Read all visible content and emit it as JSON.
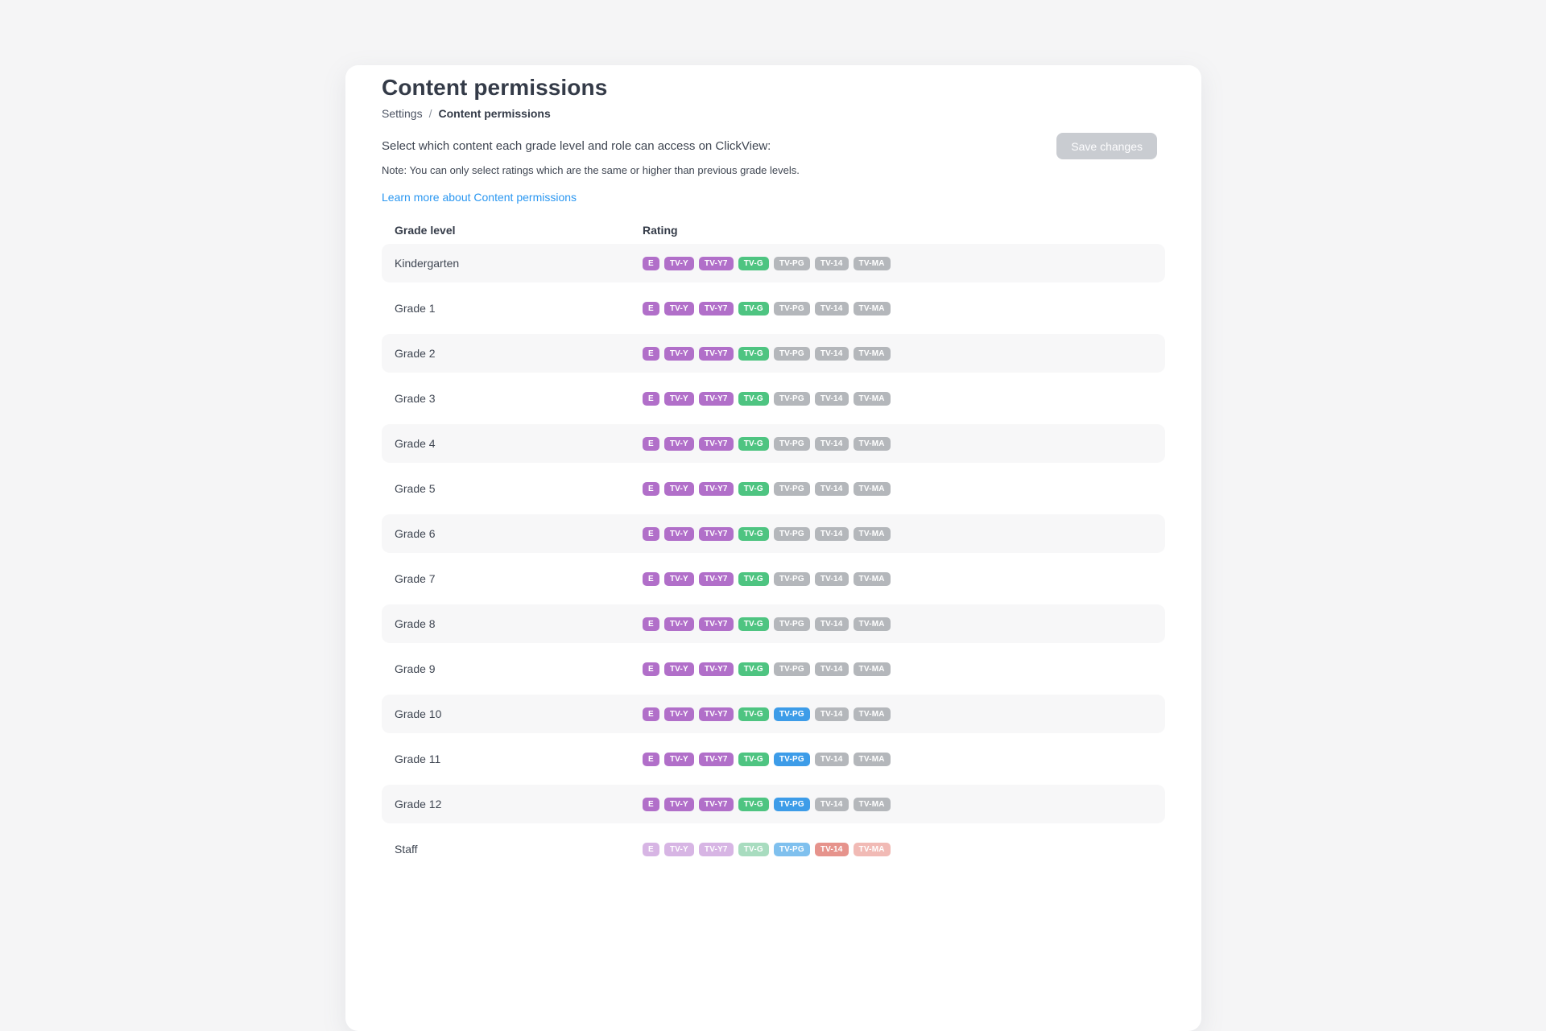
{
  "header": {
    "title": "Content permissions",
    "breadcrumb": {
      "parent": "Settings",
      "separator": "/",
      "current": "Content permissions"
    },
    "description": "Select which content each grade level and role can access on ClickView:",
    "note": "Note: You can only select ratings which are the same or higher than previous grade levels.",
    "link": "Learn more about Content permissions",
    "save_button": "Save changes"
  },
  "colors": {
    "page_background": "#f5f5f6",
    "card_background": "#ffffff",
    "link_blue": "#2a97f1",
    "disabled_button": "#c9ccd1",
    "alt_row": "#f7f7f8"
  },
  "table": {
    "columns": [
      "Grade level",
      "Rating"
    ],
    "badge_colors": {
      "purple": "#b16fc9",
      "green": "#4ec481",
      "gray": "#b4b7bb",
      "blue": "#3d9ce8",
      "purpleMuted": "#d7b5e4",
      "greenMuted": "#a8dcbf",
      "blueMuted": "#7fc0ee",
      "redMuted": "#e6938c",
      "pinkMuted": "#f1bab5"
    },
    "rows": [
      {
        "label": "Kindergarten",
        "badges": [
          {
            "text": "E",
            "color": "purple"
          },
          {
            "text": "TV-Y",
            "color": "purple"
          },
          {
            "text": "TV-Y7",
            "color": "purple"
          },
          {
            "text": "TV-G",
            "color": "green"
          },
          {
            "text": "TV-PG",
            "color": "gray"
          },
          {
            "text": "TV-14",
            "color": "gray"
          },
          {
            "text": "TV-MA",
            "color": "gray"
          }
        ]
      },
      {
        "label": "Grade 1",
        "badges": [
          {
            "text": "E",
            "color": "purple"
          },
          {
            "text": "TV-Y",
            "color": "purple"
          },
          {
            "text": "TV-Y7",
            "color": "purple"
          },
          {
            "text": "TV-G",
            "color": "green"
          },
          {
            "text": "TV-PG",
            "color": "gray"
          },
          {
            "text": "TV-14",
            "color": "gray"
          },
          {
            "text": "TV-MA",
            "color": "gray"
          }
        ]
      },
      {
        "label": "Grade 2",
        "badges": [
          {
            "text": "E",
            "color": "purple"
          },
          {
            "text": "TV-Y",
            "color": "purple"
          },
          {
            "text": "TV-Y7",
            "color": "purple"
          },
          {
            "text": "TV-G",
            "color": "green"
          },
          {
            "text": "TV-PG",
            "color": "gray"
          },
          {
            "text": "TV-14",
            "color": "gray"
          },
          {
            "text": "TV-MA",
            "color": "gray"
          }
        ]
      },
      {
        "label": "Grade 3",
        "badges": [
          {
            "text": "E",
            "color": "purple"
          },
          {
            "text": "TV-Y",
            "color": "purple"
          },
          {
            "text": "TV-Y7",
            "color": "purple"
          },
          {
            "text": "TV-G",
            "color": "green"
          },
          {
            "text": "TV-PG",
            "color": "gray"
          },
          {
            "text": "TV-14",
            "color": "gray"
          },
          {
            "text": "TV-MA",
            "color": "gray"
          }
        ]
      },
      {
        "label": "Grade 4",
        "badges": [
          {
            "text": "E",
            "color": "purple"
          },
          {
            "text": "TV-Y",
            "color": "purple"
          },
          {
            "text": "TV-Y7",
            "color": "purple"
          },
          {
            "text": "TV-G",
            "color": "green"
          },
          {
            "text": "TV-PG",
            "color": "gray"
          },
          {
            "text": "TV-14",
            "color": "gray"
          },
          {
            "text": "TV-MA",
            "color": "gray"
          }
        ]
      },
      {
        "label": "Grade 5",
        "badges": [
          {
            "text": "E",
            "color": "purple"
          },
          {
            "text": "TV-Y",
            "color": "purple"
          },
          {
            "text": "TV-Y7",
            "color": "purple"
          },
          {
            "text": "TV-G",
            "color": "green"
          },
          {
            "text": "TV-PG",
            "color": "gray"
          },
          {
            "text": "TV-14",
            "color": "gray"
          },
          {
            "text": "TV-MA",
            "color": "gray"
          }
        ]
      },
      {
        "label": "Grade 6",
        "badges": [
          {
            "text": "E",
            "color": "purple"
          },
          {
            "text": "TV-Y",
            "color": "purple"
          },
          {
            "text": "TV-Y7",
            "color": "purple"
          },
          {
            "text": "TV-G",
            "color": "green"
          },
          {
            "text": "TV-PG",
            "color": "gray"
          },
          {
            "text": "TV-14",
            "color": "gray"
          },
          {
            "text": "TV-MA",
            "color": "gray"
          }
        ]
      },
      {
        "label": "Grade 7",
        "badges": [
          {
            "text": "E",
            "color": "purple"
          },
          {
            "text": "TV-Y",
            "color": "purple"
          },
          {
            "text": "TV-Y7",
            "color": "purple"
          },
          {
            "text": "TV-G",
            "color": "green"
          },
          {
            "text": "TV-PG",
            "color": "gray"
          },
          {
            "text": "TV-14",
            "color": "gray"
          },
          {
            "text": "TV-MA",
            "color": "gray"
          }
        ]
      },
      {
        "label": "Grade 8",
        "badges": [
          {
            "text": "E",
            "color": "purple"
          },
          {
            "text": "TV-Y",
            "color": "purple"
          },
          {
            "text": "TV-Y7",
            "color": "purple"
          },
          {
            "text": "TV-G",
            "color": "green"
          },
          {
            "text": "TV-PG",
            "color": "gray"
          },
          {
            "text": "TV-14",
            "color": "gray"
          },
          {
            "text": "TV-MA",
            "color": "gray"
          }
        ]
      },
      {
        "label": "Grade 9",
        "badges": [
          {
            "text": "E",
            "color": "purple"
          },
          {
            "text": "TV-Y",
            "color": "purple"
          },
          {
            "text": "TV-Y7",
            "color": "purple"
          },
          {
            "text": "TV-G",
            "color": "green"
          },
          {
            "text": "TV-PG",
            "color": "gray"
          },
          {
            "text": "TV-14",
            "color": "gray"
          },
          {
            "text": "TV-MA",
            "color": "gray"
          }
        ]
      },
      {
        "label": "Grade 10",
        "badges": [
          {
            "text": "E",
            "color": "purple"
          },
          {
            "text": "TV-Y",
            "color": "purple"
          },
          {
            "text": "TV-Y7",
            "color": "purple"
          },
          {
            "text": "TV-G",
            "color": "green"
          },
          {
            "text": "TV-PG",
            "color": "blue"
          },
          {
            "text": "TV-14",
            "color": "gray"
          },
          {
            "text": "TV-MA",
            "color": "gray"
          }
        ]
      },
      {
        "label": "Grade 11",
        "badges": [
          {
            "text": "E",
            "color": "purple"
          },
          {
            "text": "TV-Y",
            "color": "purple"
          },
          {
            "text": "TV-Y7",
            "color": "purple"
          },
          {
            "text": "TV-G",
            "color": "green"
          },
          {
            "text": "TV-PG",
            "color": "blue"
          },
          {
            "text": "TV-14",
            "color": "gray"
          },
          {
            "text": "TV-MA",
            "color": "gray"
          }
        ]
      },
      {
        "label": "Grade 12",
        "badges": [
          {
            "text": "E",
            "color": "purple"
          },
          {
            "text": "TV-Y",
            "color": "purple"
          },
          {
            "text": "TV-Y7",
            "color": "purple"
          },
          {
            "text": "TV-G",
            "color": "green"
          },
          {
            "text": "TV-PG",
            "color": "blue"
          },
          {
            "text": "TV-14",
            "color": "gray"
          },
          {
            "text": "TV-MA",
            "color": "gray"
          }
        ]
      },
      {
        "label": "Staff",
        "badges": [
          {
            "text": "E",
            "color": "purpleMuted"
          },
          {
            "text": "TV-Y",
            "color": "purpleMuted"
          },
          {
            "text": "TV-Y7",
            "color": "purpleMuted"
          },
          {
            "text": "TV-G",
            "color": "greenMuted"
          },
          {
            "text": "TV-PG",
            "color": "blueMuted"
          },
          {
            "text": "TV-14",
            "color": "redMuted"
          },
          {
            "text": "TV-MA",
            "color": "pinkMuted"
          }
        ]
      }
    ]
  }
}
